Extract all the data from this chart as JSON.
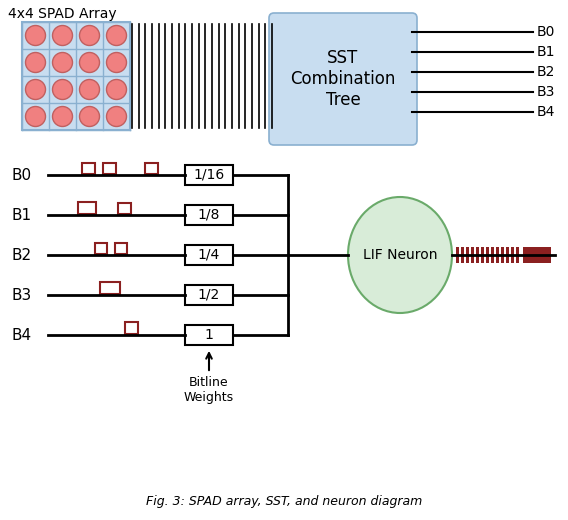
{
  "title": "4x4 SPAD Array",
  "sst_box_label": "SST\nCombination\nTree",
  "bitline_labels": [
    "B0",
    "B1",
    "B2",
    "B3",
    "B4"
  ],
  "weight_labels": [
    "1/16",
    "1/8",
    "1/4",
    "1/2",
    "1"
  ],
  "neuron_label": "LIF Neuron",
  "bitline_weights_label": "Bitline\nWeights",
  "spad_color": "#f08080",
  "spad_border_color": "#c06060",
  "grid_fill": "#c8ddf0",
  "sst_fill": "#c8ddf0",
  "sst_border": "#8ab0d0",
  "neuron_fill": "#d8ecd8",
  "neuron_border": "#6aaa6a",
  "pulse_color": "#8b2020",
  "background": "#ffffff",
  "fig_caption": "Fig. 3: SPAD array, SST, and neuron diagram"
}
